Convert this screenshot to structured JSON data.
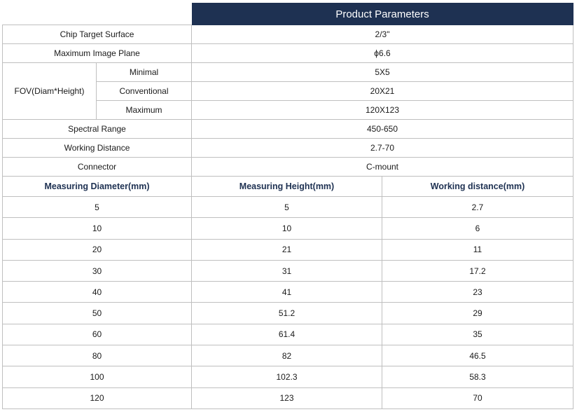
{
  "title": "Product Parameters",
  "params": {
    "chip": {
      "label": "Chip Target Surface",
      "value": "2/3\""
    },
    "image_plane": {
      "label": "Maximum Image Plane",
      "value": "ϕ6.6"
    },
    "fov": {
      "label": "FOV(Diam*Height)",
      "rows": [
        {
          "label": "Minimal",
          "value": "5X5"
        },
        {
          "label": "Conventional",
          "value": "20X21"
        },
        {
          "label": "Maximum",
          "value": "120X123"
        }
      ]
    },
    "spectral": {
      "label": "Spectral Range",
      "value": "450-650"
    },
    "working": {
      "label": "Working Distance",
      "value": "2.7-70"
    },
    "connector": {
      "label": "Connector",
      "value": "C-mount"
    }
  },
  "measure_table": {
    "headers": [
      "Measuring Diameter(mm)",
      "Measuring Height(mm)",
      "Working distance(mm)"
    ],
    "rows": [
      [
        "5",
        "5",
        "2.7"
      ],
      [
        "10",
        "10",
        "6"
      ],
      [
        "20",
        "21",
        "11"
      ],
      [
        "30",
        "31",
        "17.2"
      ],
      [
        "40",
        "41",
        "23"
      ],
      [
        "50",
        "51.2",
        "29"
      ],
      [
        "60",
        "61.4",
        "35"
      ],
      [
        "80",
        "82",
        "46.5"
      ],
      [
        "100",
        "102.3",
        "58.3"
      ],
      [
        "120",
        "123",
        "70"
      ]
    ]
  }
}
